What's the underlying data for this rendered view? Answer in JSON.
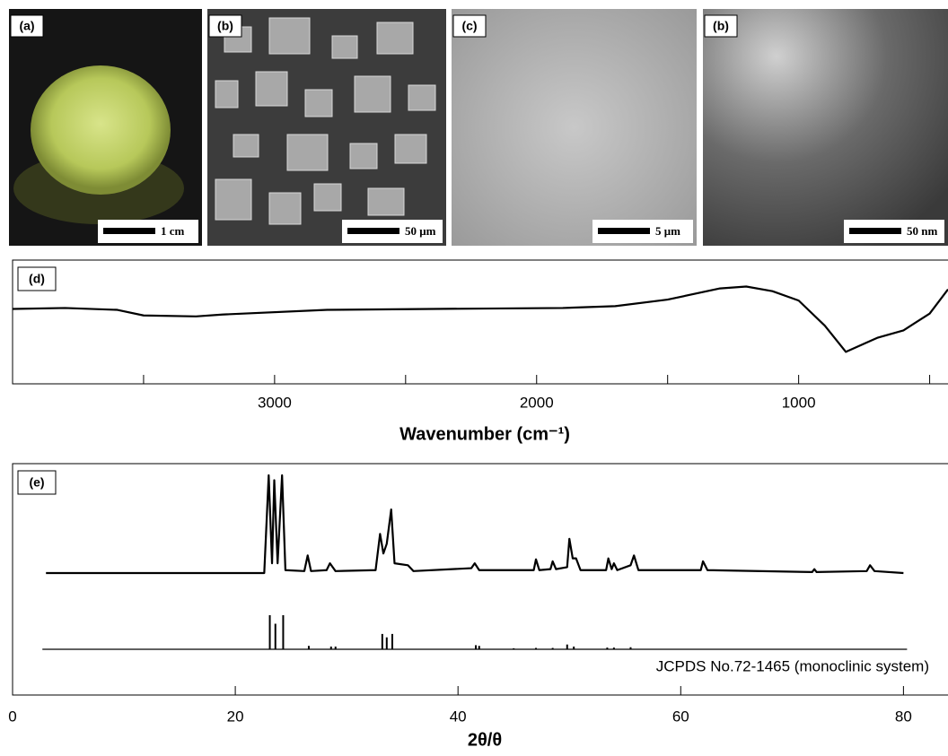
{
  "panels": [
    {
      "label": "(a)",
      "scale_bar": "1 cm"
    },
    {
      "label": "(b)",
      "scale_bar": "50 μm"
    },
    {
      "label": "(c)",
      "scale_bar": "5 μm"
    },
    {
      "label": "(b)",
      "scale_bar": "50 nm"
    }
  ],
  "chart_data": [
    {
      "type": "line",
      "label": "(d)",
      "x_label": "Wavenumber (cm⁻¹)",
      "xlim": [
        4000,
        430
      ],
      "xticks": [
        3000,
        2000,
        1000
      ],
      "minor_xticks": [
        3500,
        2500,
        1500,
        500
      ],
      "ylim": [
        0,
        100
      ],
      "color": "#000000",
      "x": [
        4000,
        3800,
        3600,
        3500,
        3300,
        3200,
        2800,
        2400,
        1900,
        1700,
        1500,
        1300,
        1200,
        1100,
        1000,
        900,
        820,
        700,
        600,
        500,
        430
      ],
      "values": [
        63,
        64,
        62,
        56,
        55,
        57,
        62,
        63,
        64,
        66,
        73,
        85,
        87,
        82,
        72,
        45,
        17,
        32,
        40,
        58,
        84
      ]
    },
    {
      "type": "line",
      "label": "(e)",
      "x_label": "2θ/θ",
      "xlim": [
        0,
        84
      ],
      "xticks": [
        0,
        20,
        40,
        60,
        80
      ],
      "ylim": [
        0,
        100
      ],
      "series": [
        {
          "color": "#000000",
          "x": [
            3,
            22.6,
            23.0,
            23.3,
            23.5,
            23.8,
            24.2,
            24.5,
            26.2,
            26.5,
            26.8,
            28.2,
            28.5,
            29,
            32.6,
            33,
            33.3,
            33.6,
            34,
            34.3,
            35.5,
            36,
            41.2,
            41.5,
            41.9,
            46.8,
            47,
            47.3,
            48.3,
            48.5,
            48.8,
            49.8,
            50,
            50.3,
            50.6,
            51,
            53.3,
            53.5,
            53.8,
            54,
            54.3,
            55.5,
            55.8,
            56.2,
            61.8,
            62,
            62.4,
            71.8,
            72,
            72.2,
            76.7,
            77,
            77.4,
            80
          ],
          "values": [
            0,
            0,
            100,
            10,
            95,
            10,
            100,
            3,
            2,
            18,
            2,
            3,
            10,
            2,
            3,
            40,
            20,
            30,
            65,
            10,
            8,
            2,
            5,
            10,
            3,
            3,
            14,
            3,
            4,
            12,
            4,
            6,
            35,
            15,
            15,
            3,
            3,
            15,
            4,
            10,
            3,
            8,
            18,
            3,
            3,
            12,
            3,
            1,
            4,
            1,
            2,
            8,
            2,
            0
          ]
        },
        {
          "name": "JCPDS No.72-1465 (monoclinic system)",
          "type": "stick",
          "color": "#000000",
          "x": [
            23.1,
            23.6,
            24.3,
            26.6,
            28.6,
            29,
            33.2,
            33.6,
            34.1,
            41.6,
            41.9,
            45,
            47,
            48.5,
            49.8,
            50.4,
            53.4,
            54,
            55.5
          ],
          "values": [
            100,
            75,
            100,
            10,
            8,
            8,
            45,
            35,
            45,
            12,
            10,
            3,
            4,
            4,
            14,
            8,
            5,
            5,
            6
          ]
        }
      ]
    }
  ]
}
